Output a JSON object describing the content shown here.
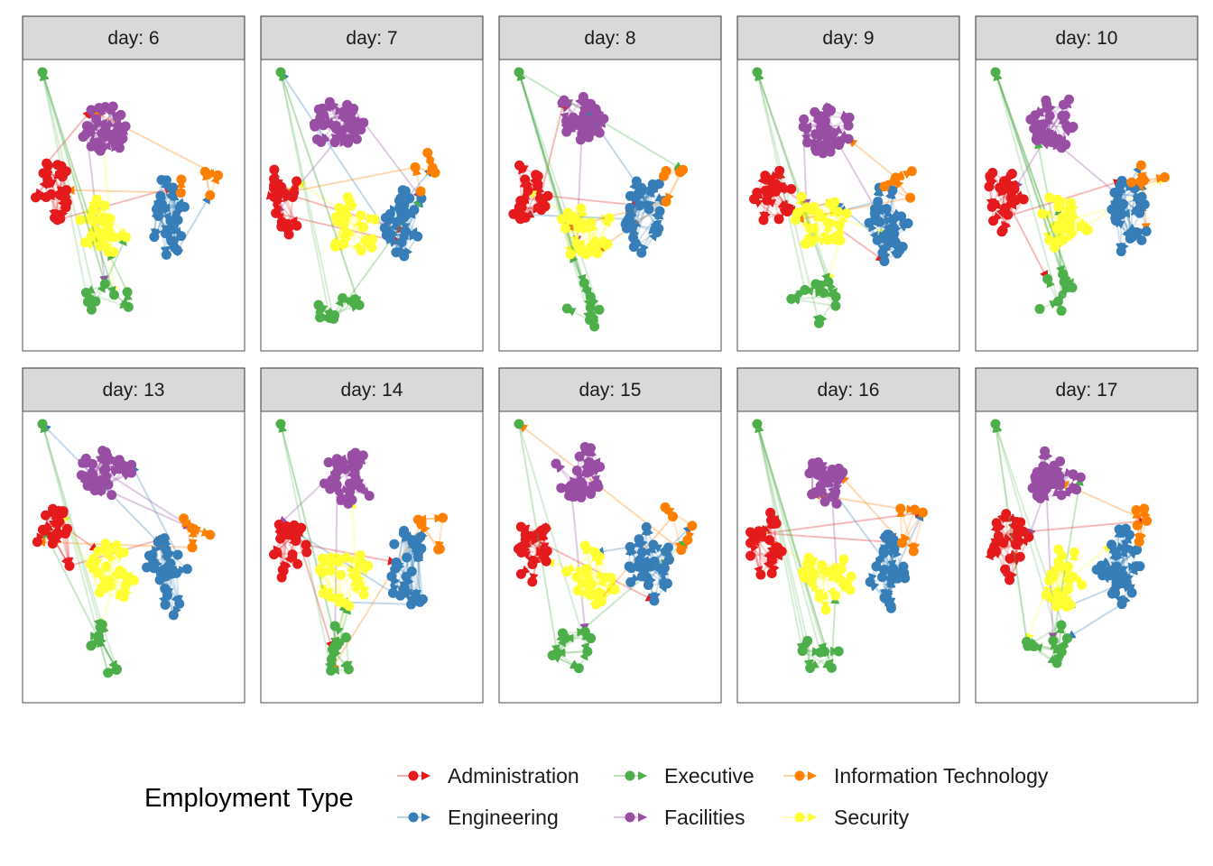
{
  "chart_data": {
    "type": "network-facets",
    "facet_label_prefix": "day: ",
    "facets": [
      "6",
      "7",
      "8",
      "9",
      "10",
      "13",
      "14",
      "15",
      "16",
      "17"
    ],
    "legend": {
      "title": "Employment Type",
      "entries": [
        {
          "label": "Administration",
          "color": "#e41a1c"
        },
        {
          "label": "Engineering",
          "color": "#377eb8"
        },
        {
          "label": "Executive",
          "color": "#4daf4a"
        },
        {
          "label": "Facilities",
          "color": "#984ea3"
        },
        {
          "label": "Information Technology",
          "color": "#ff7f00"
        },
        {
          "label": "Security",
          "color": "#ffff33"
        }
      ]
    },
    "axes_visible": false,
    "grid": false
  }
}
